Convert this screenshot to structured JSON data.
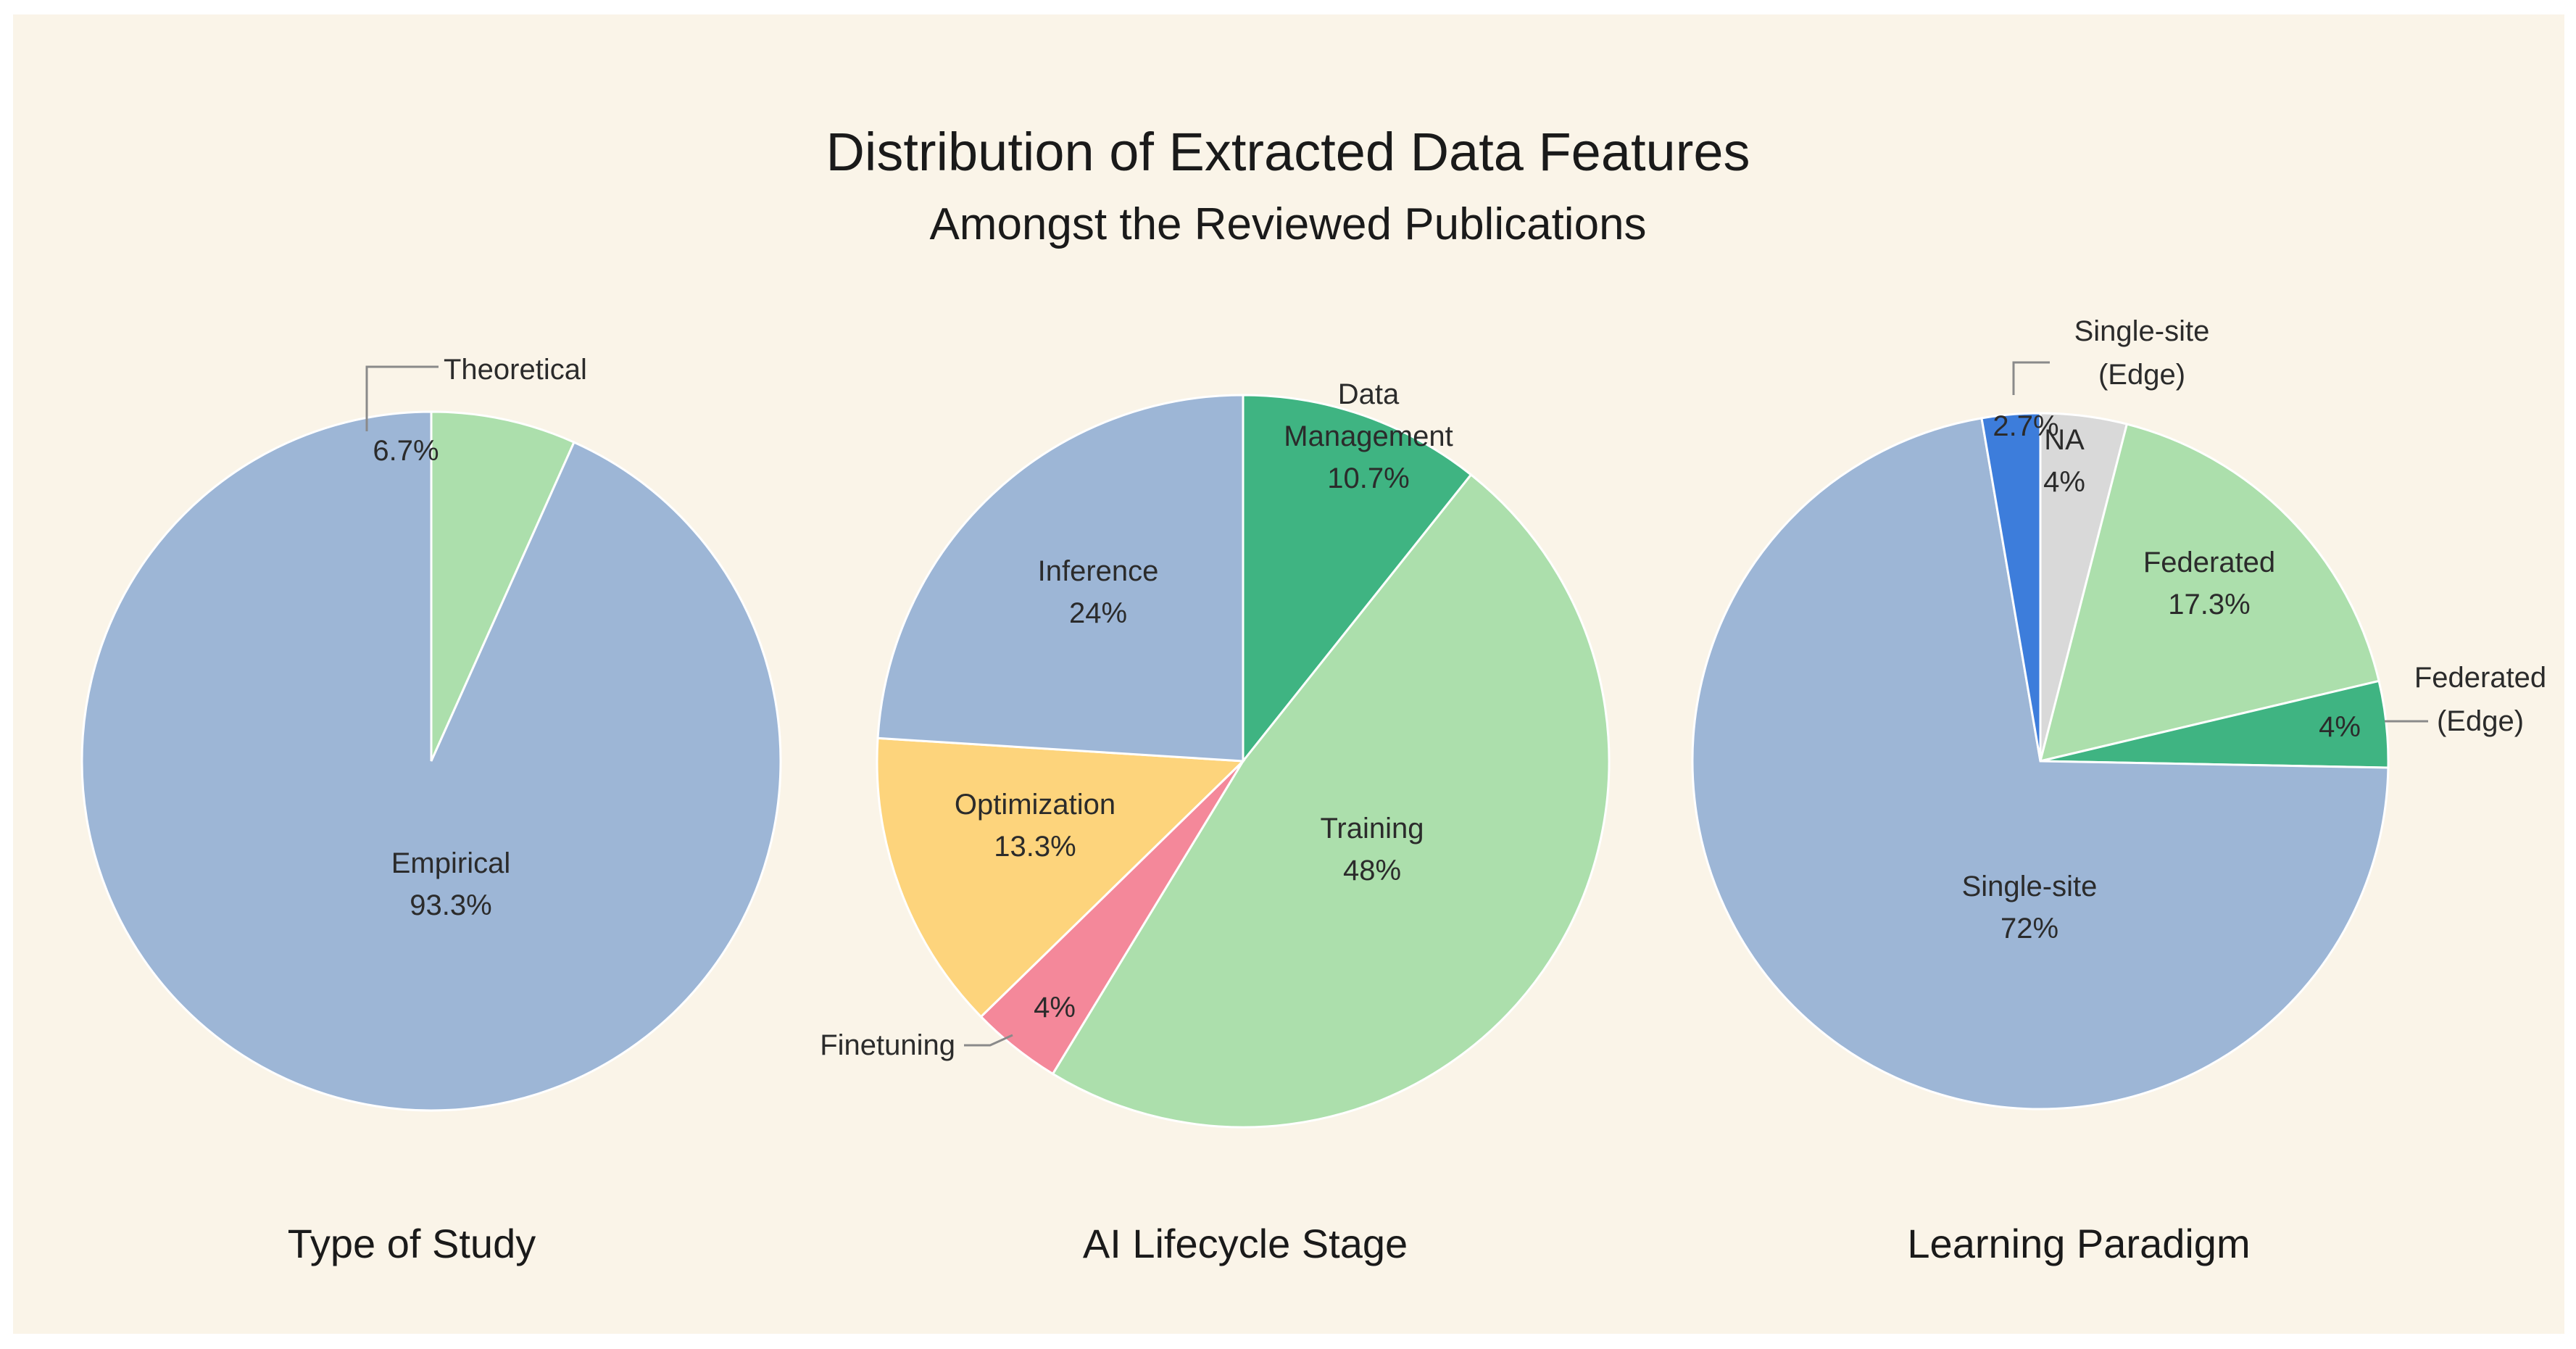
{
  "title": "Distribution of Extracted Data Features",
  "subtitle": "Amongst the Reviewed Publications",
  "colors": {
    "background": "#faf4e8",
    "blue": "#9db6d6",
    "light_green": "#acdfac",
    "dark_green": "#3fb482",
    "yellow": "#fdd47c",
    "pink": "#f4889a",
    "royal_blue": "#3d7ddb",
    "gray": "#d9d9d9"
  },
  "chart_data": [
    {
      "type": "pie",
      "title": "Type of Study",
      "slices": [
        {
          "label": "Theoretical",
          "value": 6.7,
          "display": "6.7%",
          "color": "#acdfac",
          "label_outside": true
        },
        {
          "label": "Empirical",
          "value": 93.3,
          "display": "93.3%",
          "color": "#9db6d6",
          "label_outside": false
        }
      ]
    },
    {
      "type": "pie",
      "title": "AI Lifecycle Stage",
      "slices": [
        {
          "label": "Data Management",
          "value": 10.7,
          "display": "10.7%",
          "color": "#3fb482",
          "label_outside": false
        },
        {
          "label": "Training",
          "value": 48,
          "display": "48%",
          "color": "#acdfac",
          "label_outside": false
        },
        {
          "label": "Finetuning",
          "value": 4,
          "display": "4%",
          "color": "#f4889a",
          "label_outside": true
        },
        {
          "label": "Optimization",
          "value": 13.3,
          "display": "13.3%",
          "color": "#fdd47c",
          "label_outside": false
        },
        {
          "label": "Inference",
          "value": 24,
          "display": "24%",
          "color": "#9db6d6",
          "label_outside": false
        }
      ]
    },
    {
      "type": "pie",
      "title": "Learning Paradigm",
      "slices": [
        {
          "label": "NA",
          "value": 4,
          "display": "4%",
          "color": "#d9d9d9",
          "label_outside": false
        },
        {
          "label": "Federated",
          "value": 17.3,
          "display": "17.3%",
          "color": "#acdfac",
          "label_outside": false
        },
        {
          "label": "Federated (Edge)",
          "value": 4,
          "display": "4%",
          "color": "#3fb482",
          "label_outside": true
        },
        {
          "label": "Single-site",
          "value": 72,
          "display": "72%",
          "color": "#9db6d6",
          "label_outside": false
        },
        {
          "label": "Single-site (Edge)",
          "value": 2.7,
          "display": "2.7%",
          "color": "#3d7ddb",
          "label_outside": true
        }
      ]
    }
  ]
}
